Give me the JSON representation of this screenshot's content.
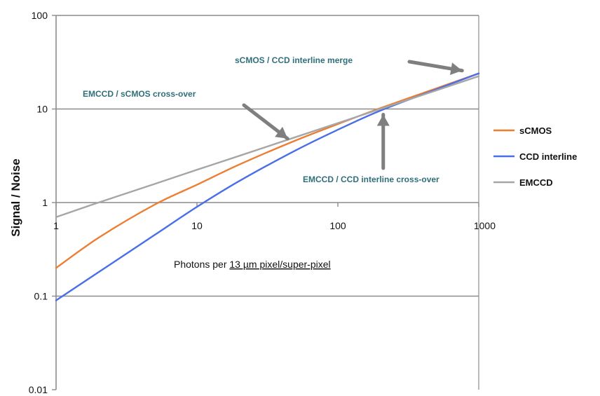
{
  "chart_data": {
    "type": "line",
    "xlabel_parts": [
      "Photons per ",
      "13 µm pixel/super-pixel"
    ],
    "ylabel": "Signal / Noise",
    "xscale": "log",
    "yscale": "log",
    "xlim": [
      1,
      1000
    ],
    "ylim": [
      0.01,
      100
    ],
    "x_ticks": [
      1,
      10,
      100,
      1000
    ],
    "x_tick_labels": [
      "1",
      "10",
      "100",
      "1000"
    ],
    "y_ticks": [
      0.01,
      0.1,
      1,
      10,
      100
    ],
    "y_tick_labels": [
      "0.01",
      "0.1",
      "1",
      "10",
      "100"
    ],
    "grid": "horizontal",
    "legend_position": "right",
    "x": [
      1,
      2,
      5,
      10,
      20,
      50,
      100,
      200,
      500,
      1000
    ],
    "series": [
      {
        "name": "sCMOS",
        "color": "#ed7d31",
        "values": [
          0.2,
          0.42,
          0.95,
          1.55,
          2.55,
          4.6,
          6.9,
          10.2,
          16.6,
          24
        ]
      },
      {
        "name": "CCD interline",
        "color": "#4a6ee8",
        "values": [
          0.09,
          0.18,
          0.45,
          0.9,
          1.7,
          3.6,
          6.0,
          9.6,
          16.2,
          24
        ]
      },
      {
        "name": "EMCCD",
        "color": "#a6a6a6",
        "values": [
          0.7,
          1.0,
          1.58,
          2.24,
          3.16,
          5.0,
          7.07,
          10.0,
          15.8,
          22.4
        ]
      }
    ],
    "annotations": [
      {
        "text": "sCMOS / CCD interline merge",
        "x": 780,
        "y": 24,
        "arrow": "left-down"
      },
      {
        "text": "EMCCD / sCMOS cross-over",
        "x": 45,
        "y": 4.5,
        "arrow": "down-right"
      },
      {
        "text": "EMCCD / CCD interline cross-over",
        "x": 210,
        "y": 10,
        "arrow": "up"
      }
    ]
  }
}
